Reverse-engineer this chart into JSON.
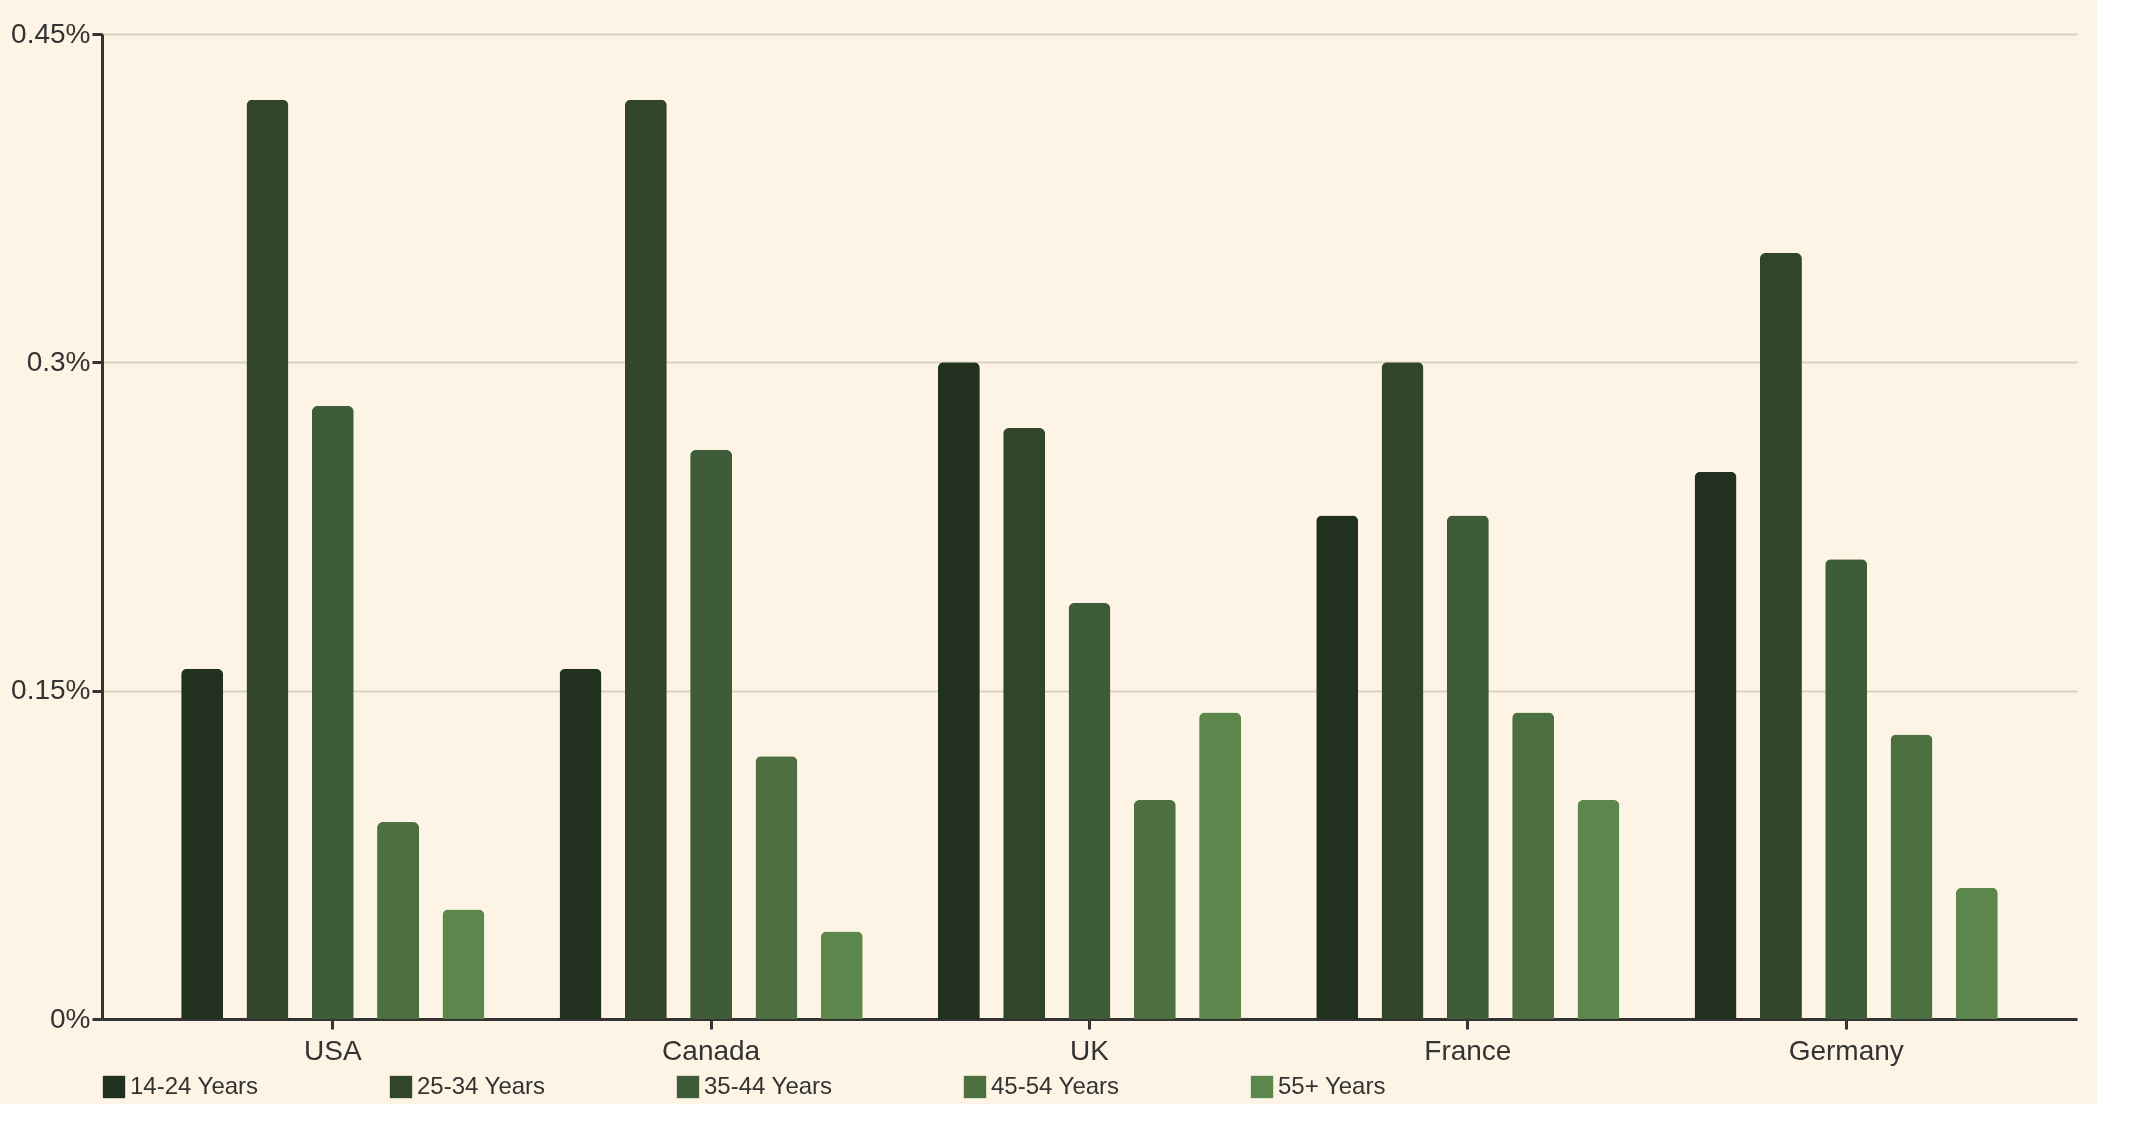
{
  "chart_data": {
    "type": "bar",
    "categories": [
      "USA",
      "Canada",
      "UK",
      "France",
      "Germany"
    ],
    "series": [
      {
        "name": "14-24 Years",
        "color": "#22301f",
        "values": [
          0.16,
          0.16,
          0.3,
          0.23,
          0.25
        ]
      },
      {
        "name": "25-34 Years",
        "color": "#30452a",
        "values": [
          0.42,
          0.42,
          0.27,
          0.3,
          0.35
        ]
      },
      {
        "name": "35-44 Years",
        "color": "#3f5c38",
        "values": [
          0.28,
          0.26,
          0.19,
          0.23,
          0.21
        ]
      },
      {
        "name": "45-54 Years",
        "color": "#4d7040",
        "values": [
          0.09,
          0.12,
          0.1,
          0.14,
          0.13
        ]
      },
      {
        "name": "55+ Years",
        "color": "#5b874d",
        "values": [
          0.05,
          0.04,
          0.14,
          0.1,
          0.06
        ]
      }
    ],
    "ylim": [
      0,
      0.45
    ],
    "yticks": [
      {
        "value": 0,
        "label": "0%"
      },
      {
        "value": 0.15,
        "label": "0.15%"
      },
      {
        "value": 0.3,
        "label": "0.3%"
      },
      {
        "value": 0.45,
        "label": "0.45%"
      }
    ],
    "grid": "y",
    "legend": "bottom"
  }
}
